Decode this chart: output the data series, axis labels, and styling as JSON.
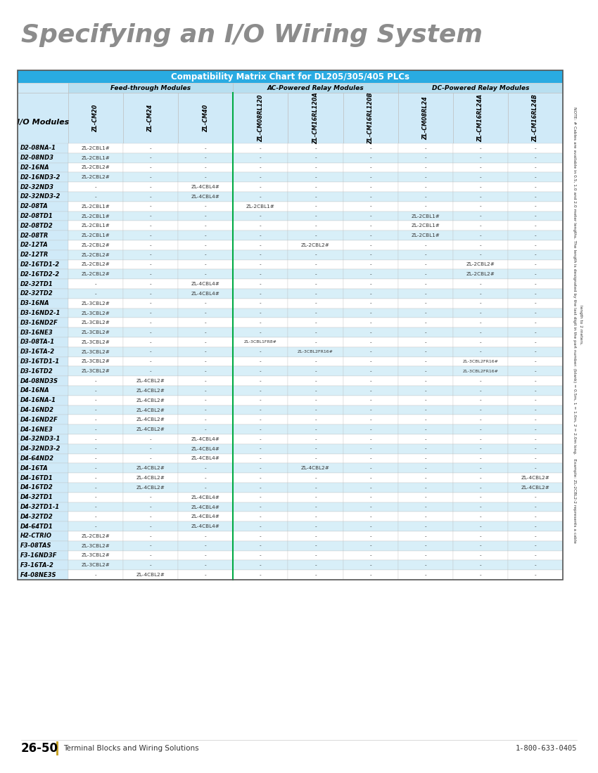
{
  "title": "Specifying an I/O Wiring System",
  "table_title": "Compatibility Matrix Chart for DL205/305/405 PLCs",
  "group_headers": [
    "Feed-through Modules",
    "AC-Powered Relay Modules",
    "DC-Powered Relay Modules"
  ],
  "col_headers": [
    "ZL-CM20",
    "ZL-CM24",
    "ZL-CM40",
    "ZL-CM08RL120",
    "ZL-CM16RL120A",
    "ZL-CM16RL120B",
    "ZL-CM08RL24",
    "ZL-CM16RL24A",
    "ZL-CM16RL24B"
  ],
  "io_col_header": "I/O Modules",
  "rows": [
    [
      "D2-08NA-1",
      "ZL-2CBL1#",
      "-",
      "-",
      "-",
      "-",
      "-",
      "-",
      "-",
      "-"
    ],
    [
      "D2-08ND3",
      "ZL-2CBL1#",
      "-",
      "-",
      "-",
      "-",
      "-",
      "-",
      "-",
      "-"
    ],
    [
      "D2-16NA",
      "ZL-2CBL2#",
      "-",
      "-",
      "-",
      "-",
      "-",
      "-",
      "-",
      "-"
    ],
    [
      "D2-16ND3-2",
      "ZL-2CBL2#",
      "-",
      "-",
      "-",
      "-",
      "-",
      "-",
      "-",
      "-"
    ],
    [
      "D2-32ND3",
      "-",
      "-",
      "ZL-4CBL4#",
      "-",
      "-",
      "-",
      "-",
      "-",
      "-"
    ],
    [
      "D2-32ND3-2",
      "-",
      "-",
      "ZL-4CBL4#",
      "-",
      "-",
      "-",
      "-",
      "-",
      "-"
    ],
    [
      "D2-08TA",
      "ZL-2CBL1#",
      "-",
      "-",
      "ZL-2CBL1#",
      "-",
      "-",
      "-",
      "-",
      "-"
    ],
    [
      "D2-08TD1",
      "ZL-2CBL1#",
      "-",
      "-",
      "-",
      "-",
      "-",
      "ZL-2CBL1#",
      "-",
      "-"
    ],
    [
      "D2-08TD2",
      "ZL-2CBL1#",
      "-",
      "-",
      "-",
      "-",
      "-",
      "ZL-2CBL1#",
      "-",
      "-"
    ],
    [
      "D2-08TR",
      "ZL-2CBL1#",
      "-",
      "-",
      "-",
      "-",
      "-",
      "ZL-2CBL1#",
      "-",
      "-"
    ],
    [
      "D2-12TA",
      "ZL-2CBL2#",
      "-",
      "-",
      "-",
      "ZL-2CBL2#",
      "-",
      "-",
      "-",
      "-"
    ],
    [
      "D2-12TR",
      "ZL-2CBL2#",
      "-",
      "-",
      "-",
      "-",
      "-",
      "-",
      "-",
      "-"
    ],
    [
      "D2-16TD1-2",
      "ZL-2CBL2#",
      "-",
      "-",
      "-",
      "-",
      "-",
      "-",
      "ZL-2CBL2#",
      "-"
    ],
    [
      "D2-16TD2-2",
      "ZL-2CBL2#",
      "-",
      "-",
      "-",
      "-",
      "-",
      "-",
      "ZL-2CBL2#",
      "-"
    ],
    [
      "D2-32TD1",
      "-",
      "-",
      "ZL-4CBL4#",
      "-",
      "-",
      "-",
      "-",
      "-",
      "-"
    ],
    [
      "D2-32TD2",
      "-",
      "-",
      "ZL-4CBL4#",
      "-",
      "-",
      "-",
      "-",
      "-",
      "-"
    ],
    [
      "D3-16NA",
      "ZL-3CBL2#",
      "-",
      "-",
      "-",
      "-",
      "-",
      "-",
      "-",
      "-"
    ],
    [
      "D3-16ND2-1",
      "ZL-3CBL2#",
      "-",
      "-",
      "-",
      "-",
      "-",
      "-",
      "-",
      "-"
    ],
    [
      "D3-16ND2F",
      "ZL-3CBL2#",
      "-",
      "-",
      "-",
      "-",
      "-",
      "-",
      "-",
      "-"
    ],
    [
      "D3-16NE3",
      "ZL-3CBL2#",
      "-",
      "-",
      "-",
      "-",
      "-",
      "-",
      "-",
      "-"
    ],
    [
      "D3-08TA-1",
      "ZL-3CBL2#",
      "-",
      "-",
      "ZL-3CBL1FR8#",
      "-",
      "-",
      "-",
      "-",
      "-"
    ],
    [
      "D3-16TA-2",
      "ZL-3CBL2#",
      "-",
      "-",
      "-",
      "ZL-3CBL2FR16#",
      "-",
      "-",
      "-",
      "-"
    ],
    [
      "D3-16TD1-1",
      "ZL-3CBL2#",
      "-",
      "-",
      "-",
      "-",
      "-",
      "-",
      "ZL-3CBL2FR16#",
      "-"
    ],
    [
      "D3-16TD2",
      "ZL-3CBL2#",
      "-",
      "-",
      "-",
      "-",
      "-",
      "-",
      "ZL-3CBL2FR16#",
      "-"
    ],
    [
      "D4-08ND3S",
      "-",
      "ZL-4CBL2#",
      "-",
      "-",
      "-",
      "-",
      "-",
      "-",
      "-"
    ],
    [
      "D4-16NA",
      "-",
      "ZL-4CBL2#",
      "-",
      "-",
      "-",
      "-",
      "-",
      "-",
      "-"
    ],
    [
      "D4-16NA-1",
      "-",
      "ZL-4CBL2#",
      "-",
      "-",
      "-",
      "-",
      "-",
      "-",
      "-"
    ],
    [
      "D4-16ND2",
      "-",
      "ZL-4CBL2#",
      "-",
      "-",
      "-",
      "-",
      "-",
      "-",
      "-"
    ],
    [
      "D4-16ND2F",
      "-",
      "ZL-4CBL2#",
      "-",
      "-",
      "-",
      "-",
      "-",
      "-",
      "-"
    ],
    [
      "D4-16NE3",
      "-",
      "ZL-4CBL2#",
      "-",
      "-",
      "-",
      "-",
      "-",
      "-",
      "-"
    ],
    [
      "D4-32ND3-1",
      "-",
      "-",
      "ZL-4CBL4#",
      "-",
      "-",
      "-",
      "-",
      "-",
      "-"
    ],
    [
      "D4-32ND3-2",
      "-",
      "-",
      "ZL-4CBL4#",
      "-",
      "-",
      "-",
      "-",
      "-",
      "-"
    ],
    [
      "D4-64ND2",
      "-",
      "-",
      "ZL-4CBL4#",
      "-",
      "-",
      "-",
      "-",
      "-",
      "-"
    ],
    [
      "D4-16TA",
      "-",
      "ZL-4CBL2#",
      "-",
      "-",
      "ZL-4CBL2#",
      "-",
      "-",
      "-",
      "-"
    ],
    [
      "D4-16TD1",
      "-",
      "ZL-4CBL2#",
      "-",
      "-",
      "-",
      "-",
      "-",
      "-",
      "ZL-4CBL2#"
    ],
    [
      "D4-16TD2",
      "-",
      "ZL-4CBL2#",
      "-",
      "-",
      "-",
      "-",
      "-",
      "-",
      "ZL-4CBL2#"
    ],
    [
      "D4-32TD1",
      "-",
      "-",
      "ZL-4CBL4#",
      "-",
      "-",
      "-",
      "-",
      "-",
      "-"
    ],
    [
      "D4-32TD1-1",
      "-",
      "-",
      "ZL-4CBL4#",
      "-",
      "-",
      "-",
      "-",
      "-",
      "-"
    ],
    [
      "D4-32TD2",
      "-",
      "-",
      "ZL-4CBL4#",
      "-",
      "-",
      "-",
      "-",
      "-",
      "-"
    ],
    [
      "D4-64TD1",
      "-",
      "-",
      "ZL-4CBL4#",
      "-",
      "-",
      "-",
      "-",
      "-",
      "-"
    ],
    [
      "H2-CTRIO",
      "ZL-2CBL2#",
      "-",
      "-",
      "-",
      "-",
      "-",
      "-",
      "-",
      "-"
    ],
    [
      "F3-08TAS",
      "ZL-3CBL2#",
      "-",
      "-",
      "-",
      "-",
      "-",
      "-",
      "-",
      "-"
    ],
    [
      "F3-16ND3F",
      "ZL-3CBL2#",
      "-",
      "-",
      "-",
      "-",
      "-",
      "-",
      "-",
      "-"
    ],
    [
      "F3-16TA-2",
      "ZL-3CBL2#",
      "-",
      "-",
      "-",
      "-",
      "-",
      "-",
      "-",
      "-"
    ],
    [
      "F4-08NE3S",
      "-",
      "ZL-4CBL2#",
      "-",
      "-",
      "-",
      "-",
      "-",
      "-",
      "-"
    ]
  ],
  "colors": {
    "title_color": "#8C8C8C",
    "table_header_bg": "#29ABE2",
    "table_header_text": "#FFFFFF",
    "group_header_bg": "#B8DFF0",
    "group_header_text": "#000000",
    "col_header_bg": "#D0EAF8",
    "io_col_bg": "#D0EAF8",
    "row_odd_bg": "#FFFFFF",
    "row_even_bg": "#D8EFF8",
    "cell_text": "#333333",
    "border_color": "#BBBBBB",
    "green_divider": "#00AA44"
  },
  "footer_left": "26-50",
  "footer_center": "Terminal Blocks and Wiring Solutions",
  "footer_right": "1-800-633-0405",
  "side_note": "NOTE: # Cables are available in 0.5, 1.0 and 2.0 meter lengths. The length is designated by the last digit in the part number: (blank) = 0.5m, 1 = 1.0m, 2 = 2.0m long.   Example: ZL-2CBL2-2 represents a cable\nlength to 2 meters."
}
